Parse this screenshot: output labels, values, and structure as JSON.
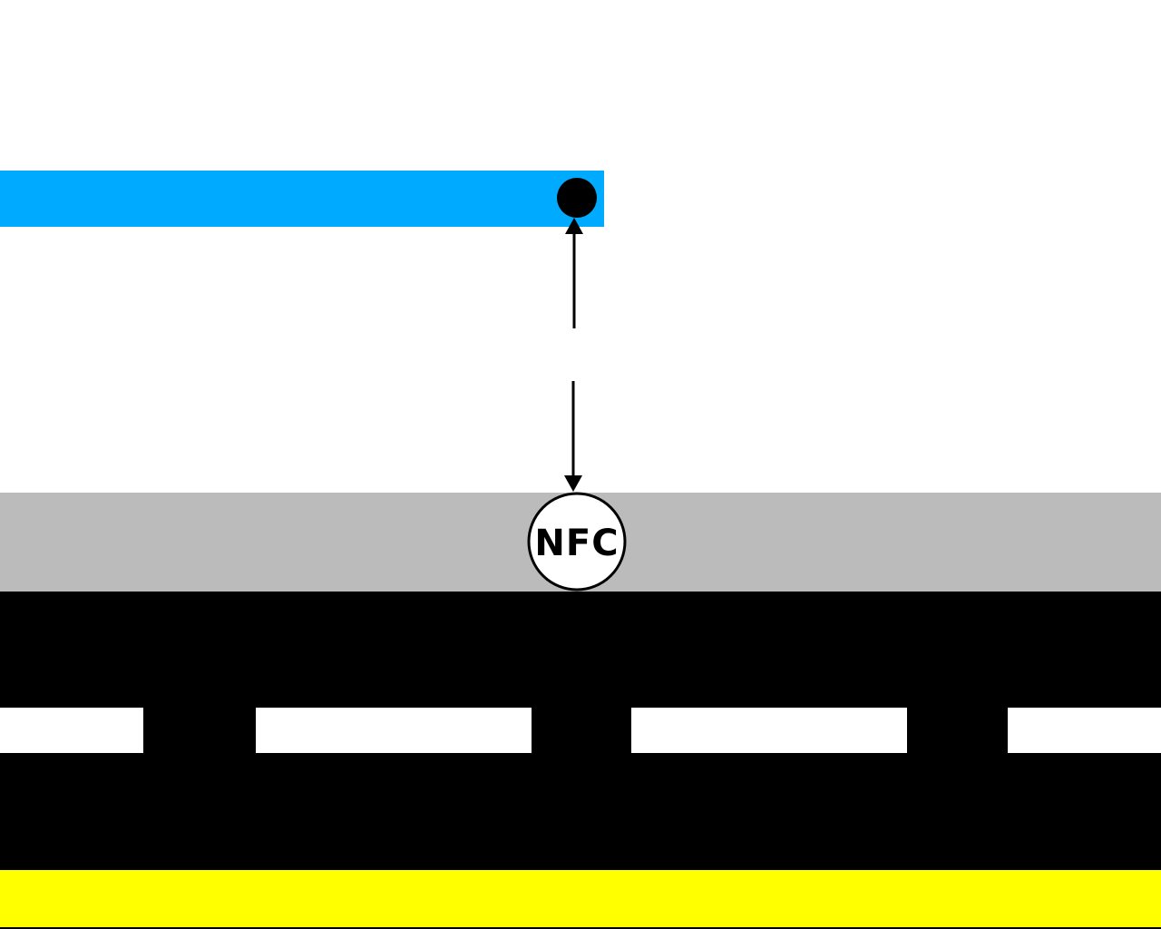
{
  "nfc_label": "NFC",
  "colors": {
    "background": "#ffffff",
    "blue_bar": "#00aaff",
    "sidewalk": "#bbbbbb",
    "road": "#000000",
    "lane_marking": "#ffffff",
    "curb_line": "#ffff00",
    "nfc_circle_fill": "#ffffff",
    "dot": "#000000",
    "arrow": "#000000"
  },
  "icons": {
    "dot": "filled-circle",
    "nfc_tag": "nfc-circle"
  }
}
